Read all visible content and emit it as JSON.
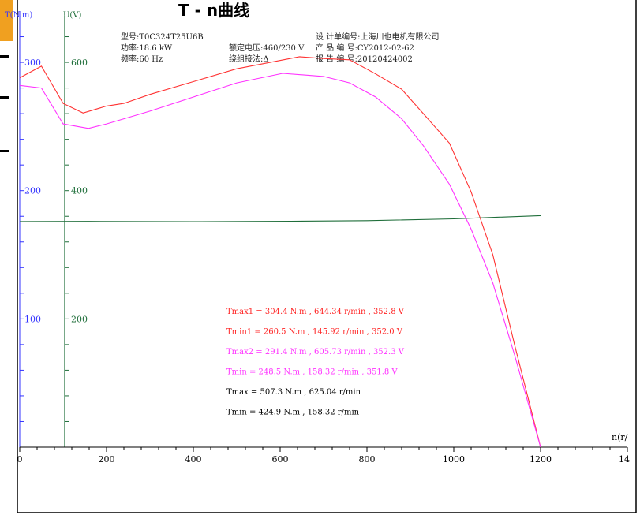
{
  "title": "T - n曲线",
  "chart_data": {
    "type": "line",
    "x_axis": {
      "label": "n(r/",
      "range": [
        0,
        1400
      ],
      "ticks": [
        0,
        200,
        400,
        600,
        800,
        1000,
        1200
      ],
      "last_tick_label": "14"
    },
    "y_axis_torque": {
      "label": "T(N.m)",
      "range": [
        0,
        340
      ],
      "ticks": [
        100,
        200,
        300
      ]
    },
    "y_axis_voltage": {
      "label": "U(V)",
      "range": [
        0,
        680
      ],
      "ticks": [
        200,
        400,
        600
      ]
    },
    "info": {
      "model": "型号:T0C324T25U6B",
      "power": "功率:18.6  kW",
      "frequency": "频率:60 Hz",
      "rated_voltage": "额定电压:460/230  V",
      "winding": "绕组接法:Δ",
      "design_no": "设 计单编号:上海川也电机有限公司",
      "product_no": "产 品 编 号:CY2012-02-62",
      "report_no": "报 告 编 号:20120424002"
    },
    "annotations": [
      {
        "text": "Tmax1 =  304.4 N.m , 644.34 r/min ,  352.8 V",
        "color": "#ff2222"
      },
      {
        "text": "Tmin1 =  260.5 N.m , 145.92 r/min ,  352.0 V",
        "color": "#ff2222"
      },
      {
        "text": "Tmax2 =  291.4 N.m , 605.73 r/min ,  352.3 V",
        "color": "#ff33ff"
      },
      {
        "text": "Tmin  =  248.5 N.m , 158.32 r/min ,  351.8 V",
        "color": "#ff33ff"
      },
      {
        "text": "Tmax  =  507.3 N.m , 625.04 r/min",
        "color": "#000000"
      },
      {
        "text": "Tmin  =  424.9 N.m , 158.32 r/min",
        "color": "#000000"
      }
    ],
    "series": [
      {
        "axis": "torque",
        "color": "#ff3333",
        "x": [
          0,
          50,
          100,
          145.92,
          200,
          240,
          300,
          400,
          500,
          644.34,
          700,
          760,
          820,
          880,
          930,
          990,
          1040,
          1090,
          1140,
          1200
        ],
        "y": [
          288,
          297,
          268,
          260.5,
          266,
          268,
          275,
          285,
          295,
          304.4,
          303,
          302,
          291,
          279,
          260,
          237,
          199,
          150,
          80,
          0
        ]
      },
      {
        "axis": "torque",
        "color": "#ff33ff",
        "x": [
          0,
          50,
          100,
          158.32,
          200,
          300,
          400,
          500,
          605.73,
          700,
          760,
          820,
          880,
          930,
          990,
          1040,
          1090,
          1140,
          1200
        ],
        "y": [
          282,
          280,
          252,
          248.5,
          252,
          262,
          273,
          284,
          291.4,
          289,
          284,
          273,
          256,
          235,
          205,
          170,
          128,
          72,
          0
        ]
      },
      {
        "axis": "voltage",
        "color": "#1f6e3a",
        "x": [
          0,
          158.32,
          400,
          625.04,
          800,
          1000,
          1200
        ],
        "y": [
          351.8,
          352.0,
          351.6,
          352.3,
          353.2,
          356.0,
          361.0
        ]
      }
    ]
  }
}
